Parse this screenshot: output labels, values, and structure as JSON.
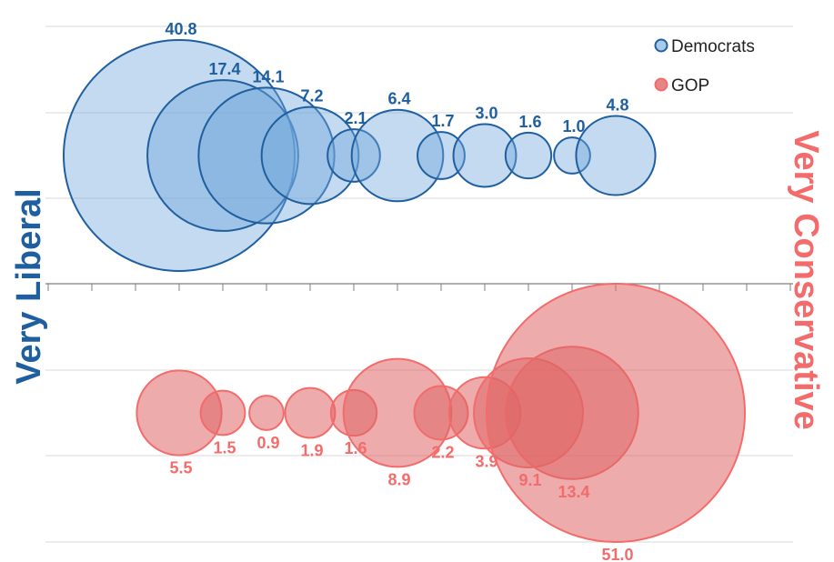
{
  "chart_data": {
    "type": "bubble",
    "title": "",
    "xlabel": "",
    "ylabel": "",
    "grid": true,
    "legend_position": "top-right",
    "left_label": "Very Liberal",
    "right_label": "Very Conservative",
    "x": [
      1,
      2,
      3,
      4,
      5,
      6,
      7,
      8,
      9,
      10,
      11
    ],
    "series": [
      {
        "name": "Democrats",
        "values": [
          40.8,
          17.4,
          14.1,
          7.2,
          2.1,
          6.4,
          1.7,
          3.0,
          1.6,
          1.0,
          4.8
        ],
        "labels": [
          "40.8",
          "17.4",
          "14.1",
          "7.2",
          "2.1",
          "6.4",
          "1.7",
          "3.0",
          "1.6",
          "1.0",
          "4.8"
        ]
      },
      {
        "name": "GOP",
        "values": [
          5.5,
          1.5,
          0.9,
          1.9,
          1.6,
          8.9,
          2.2,
          3.9,
          9.1,
          13.4,
          51.0
        ],
        "labels": [
          "5.5",
          "1.5",
          "0.9",
          "1.9",
          "1.6",
          "8.9",
          "2.2",
          "3.9",
          "9.1",
          "13.4",
          "51.0"
        ]
      }
    ]
  },
  "colors": {
    "dem_fill": "#6fa8dc",
    "dem_stroke": "#1f5fa0",
    "dem_label": "#1f5fa0",
    "gop_fill": "#e06666",
    "gop_stroke": "#f36b6b",
    "gop_label": "#f36b6b",
    "grid": "#d9d9d9",
    "axis": "#7f7f7f"
  }
}
